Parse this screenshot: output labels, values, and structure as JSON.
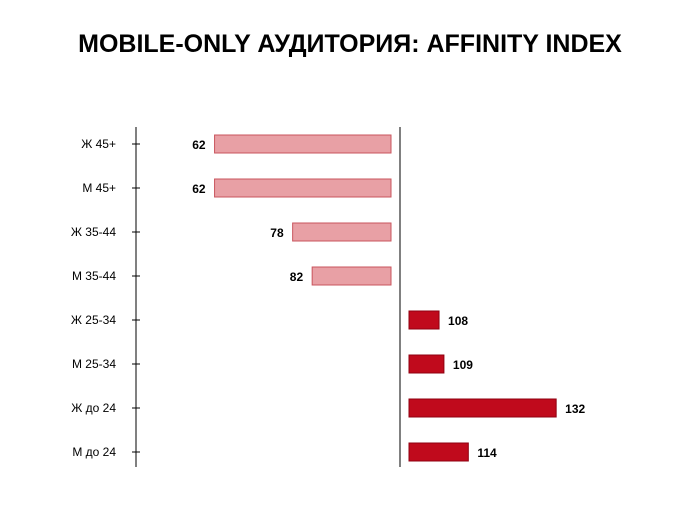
{
  "title": "MOBILE-ONLY АУДИТОРИЯ: AFFINITY INDEX",
  "chart_data": {
    "type": "bar",
    "orientation": "horizontal",
    "baseline": 100,
    "categories": [
      "Ж 45+",
      "М 45+",
      "Ж 35-44",
      "М 35-44",
      "Ж 25-34",
      "М 25-34",
      "Ж до 24",
      "М до 24"
    ],
    "values": [
      62,
      62,
      78,
      82,
      108,
      109,
      132,
      114
    ],
    "xlim": [
      36,
      150
    ],
    "grid": false,
    "legend": "none",
    "colors": {
      "below_baseline_fill": "#e8a0a5",
      "below_baseline_stroke": "#c9545d",
      "above_baseline_fill": "#c00a1c",
      "above_baseline_stroke": "#8f0010",
      "axis": "#000000"
    }
  }
}
